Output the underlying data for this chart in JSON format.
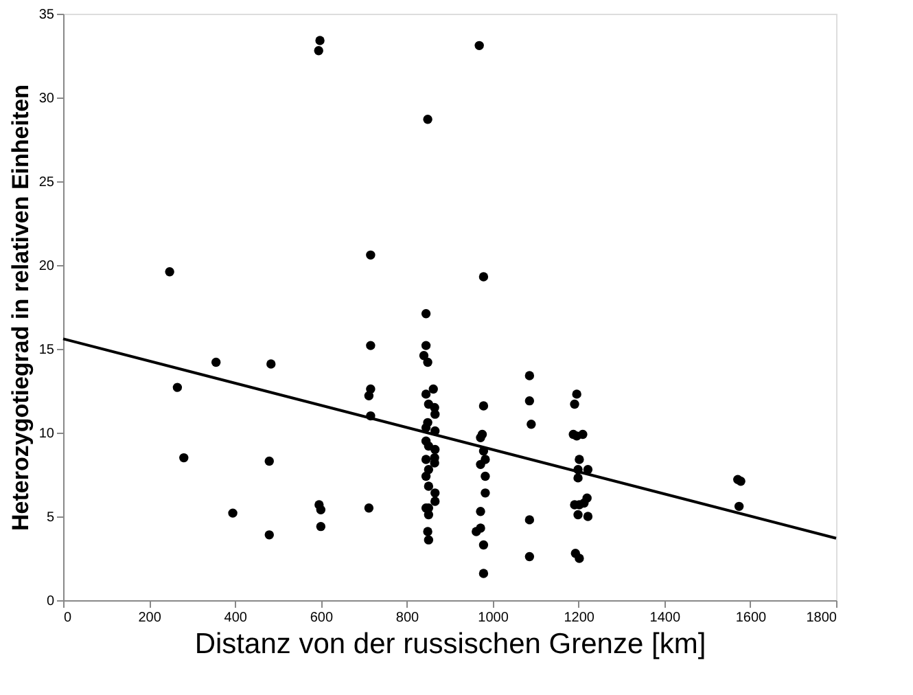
{
  "chart_data": {
    "type": "scatter",
    "xlabel": "Distanz von der russischen Grenze [km]",
    "ylabel": "Heterozygotiegrad in relativen Einheiten",
    "xlim": [
      0,
      1800
    ],
    "xticks": [
      0,
      200,
      400,
      600,
      800,
      1000,
      1200,
      1400,
      1600,
      1800
    ],
    "ylim": [
      0,
      35
    ],
    "yticks": [
      0,
      5,
      10,
      15,
      20,
      25,
      30,
      35
    ],
    "grid": false,
    "series": [
      {
        "color": "#000000",
        "marker": "circle",
        "x": [
          248,
          266,
          281,
          356,
          395,
          480,
          480,
          484,
          598,
          595,
          596,
          600,
          600,
          716,
          716,
          716,
          712,
          716,
          712,
          849,
          845,
          845,
          840,
          849,
          862,
          845,
          851,
          865,
          866,
          849,
          845,
          866,
          845,
          851,
          866,
          845,
          865,
          865,
          845,
          851,
          851,
          866,
          866,
          845,
          851,
          851,
          849,
          851,
          969,
          979,
          979,
          972,
          976,
          979,
          972,
          983,
          983,
          983,
          972,
          972,
          962,
          979,
          979,
          1086,
          1086,
          1090,
          1086,
          1086,
          1196,
          1191,
          1188,
          1196,
          1210,
          1202,
          1199,
          1199,
          1222,
          1191,
          1202,
          1220,
          1213,
          1199,
          1222,
          1193,
          1202,
          1571,
          1578,
          1574
        ],
        "values": [
          19.6,
          12.7,
          8.5,
          14.2,
          5.2,
          3.9,
          8.3,
          14.1,
          33.4,
          32.8,
          5.7,
          5.4,
          4.4,
          20.6,
          15.2,
          12.6,
          12.2,
          11.0,
          5.5,
          28.7,
          17.1,
          15.2,
          14.6,
          14.2,
          12.6,
          12.3,
          11.7,
          11.5,
          11.1,
          10.6,
          10.3,
          10.1,
          9.5,
          9.2,
          9.0,
          8.4,
          8.5,
          8.2,
          7.4,
          7.8,
          6.8,
          6.4,
          5.9,
          5.5,
          5.1,
          5.5,
          4.1,
          3.6,
          33.1,
          19.3,
          11.6,
          9.7,
          9.9,
          8.9,
          8.1,
          8.4,
          7.4,
          6.4,
          5.3,
          4.3,
          4.1,
          3.3,
          1.6,
          13.4,
          11.9,
          10.5,
          4.8,
          2.6,
          12.3,
          11.7,
          9.9,
          9.8,
          9.9,
          8.4,
          7.8,
          7.3,
          7.8,
          5.7,
          5.7,
          6.1,
          5.8,
          5.1,
          5.0,
          2.8,
          2.5,
          7.2,
          7.1,
          5.6
        ]
      },
      {
        "type": "line",
        "color": "#000000",
        "line_style": "solid",
        "marker": "none",
        "x": [
          0,
          1800
        ],
        "values": [
          15.6,
          3.7
        ]
      }
    ]
  }
}
